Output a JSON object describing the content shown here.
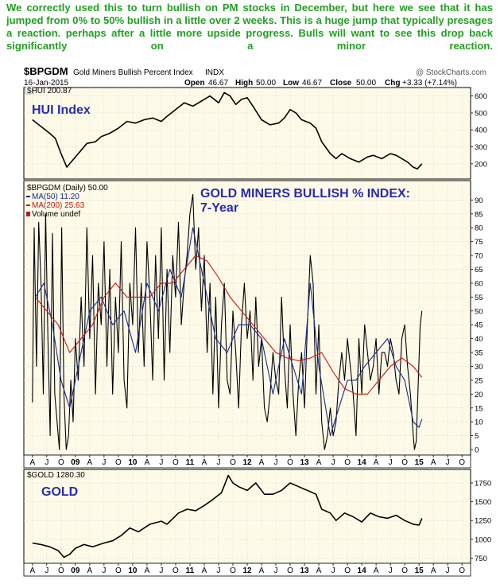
{
  "commentary": "We correctly used this to turn bullish on PM stocks in December, but here we see that it has jumped from 0% to 50% bullish in a little over 2 weeks. This is a huge jump that typically presages a reaction. perhaps after a little more upside progress. Bulls will want to see this drop back significantly on a minor reaction.",
  "header": {
    "symbol": "$BPGDM",
    "name": "Gold Miners Bullish Percent Index",
    "exchange": "INDX",
    "date": "16-Jan-2015",
    "source": "@ StockCharts.com",
    "open_label": "Open",
    "open": "46.67",
    "high_label": "High",
    "high": "50.00",
    "low_label": "Low",
    "low": "46.67",
    "close_label": "Close",
    "close": "50.00",
    "chg_label": "Chg",
    "chg": "+3.33 (+7.14%)"
  },
  "colors": {
    "panel_bg": "#fdfbe8",
    "annotation": "#2a2ab0",
    "bpi_line": "#000000",
    "ma50": "#1b2a8c",
    "ma200": "#cc1111",
    "price_line": "#000000",
    "volume": "#aa2222"
  },
  "chart_data": [
    {
      "id": "hui",
      "type": "line",
      "title": "HUI Index",
      "legend": [
        {
          "label": "$HUI 200.87"
        }
      ],
      "ylim": [
        110,
        650
      ],
      "y_ticks": [
        "600",
        "500",
        "400",
        "300",
        "200"
      ],
      "y_tick_values": [
        600,
        500,
        400,
        300,
        200
      ],
      "series": [
        {
          "name": "$HUI",
          "x": [
            2008.25,
            2008.4,
            2008.55,
            2008.65,
            2008.75,
            2008.85,
            2008.95,
            2009.1,
            2009.2,
            2009.35,
            2009.45,
            2009.6,
            2009.75,
            2009.9,
            2010.05,
            2010.2,
            2010.35,
            2010.5,
            2010.6,
            2010.75,
            2010.9,
            2011.05,
            2011.2,
            2011.35,
            2011.5,
            2011.6,
            2011.7,
            2011.8,
            2011.9,
            2012.0,
            2012.1,
            2012.25,
            2012.4,
            2012.55,
            2012.65,
            2012.75,
            2012.85,
            2012.95,
            2013.1,
            2013.2,
            2013.3,
            2013.45,
            2013.55,
            2013.65,
            2013.8,
            2013.95,
            2014.1,
            2014.2,
            2014.35,
            2014.5,
            2014.6,
            2014.7,
            2014.8,
            2014.9,
            2014.97,
            2015.05
          ],
          "values": [
            460,
            420,
            380,
            350,
            260,
            180,
            220,
            280,
            320,
            330,
            360,
            380,
            410,
            450,
            440,
            460,
            470,
            450,
            480,
            520,
            560,
            540,
            570,
            600,
            560,
            620,
            600,
            550,
            580,
            590,
            540,
            460,
            430,
            440,
            470,
            520,
            500,
            460,
            440,
            410,
            330,
            260,
            230,
            260,
            230,
            210,
            240,
            250,
            230,
            260,
            250,
            230,
            210,
            180,
            170,
            200
          ]
        }
      ]
    },
    {
      "id": "bpgdm",
      "type": "line",
      "title": "GOLD MINERS BULLISH % INDEX:",
      "subtitle": "7-Year",
      "legend": [
        {
          "label": "$BPGDM (Daily) 50.00"
        },
        {
          "label": "MA(50) 11.20"
        },
        {
          "label": "MA(200) 25.63"
        },
        {
          "label": "Volume undef"
        }
      ],
      "ylim": [
        -2,
        97
      ],
      "y_ticks": [
        "90",
        "85",
        "80",
        "75",
        "70",
        "65",
        "60",
        "55",
        "50",
        "45",
        "40",
        "35",
        "30",
        "25",
        "20",
        "15",
        "10",
        "5",
        "0"
      ],
      "y_tick_values": [
        90,
        85,
        80,
        75,
        70,
        65,
        60,
        55,
        50,
        45,
        40,
        35,
        30,
        25,
        20,
        15,
        10,
        5,
        0
      ],
      "series": [
        {
          "name": "$BPGDM",
          "x": [
            2008.25,
            2008.28,
            2008.32,
            2008.36,
            2008.4,
            2008.44,
            2008.48,
            2008.52,
            2008.56,
            2008.6,
            2008.64,
            2008.68,
            2008.72,
            2008.76,
            2008.8,
            2008.84,
            2008.88,
            2008.92,
            2008.96,
            2009.0,
            2009.05,
            2009.1,
            2009.15,
            2009.2,
            2009.25,
            2009.3,
            2009.35,
            2009.4,
            2009.45,
            2009.5,
            2009.55,
            2009.6,
            2009.65,
            2009.7,
            2009.75,
            2009.8,
            2009.85,
            2009.9,
            2009.95,
            2010.0,
            2010.05,
            2010.1,
            2010.15,
            2010.2,
            2010.25,
            2010.3,
            2010.35,
            2010.4,
            2010.45,
            2010.5,
            2010.55,
            2010.6,
            2010.65,
            2010.7,
            2010.75,
            2010.8,
            2010.85,
            2010.9,
            2010.95,
            2011.0,
            2011.05,
            2011.1,
            2011.15,
            2011.2,
            2011.25,
            2011.3,
            2011.35,
            2011.4,
            2011.45,
            2011.5,
            2011.55,
            2011.6,
            2011.65,
            2011.7,
            2011.75,
            2011.8,
            2011.85,
            2011.9,
            2011.95,
            2012.0,
            2012.05,
            2012.1,
            2012.15,
            2012.2,
            2012.25,
            2012.3,
            2012.35,
            2012.4,
            2012.45,
            2012.5,
            2012.55,
            2012.6,
            2012.65,
            2012.7,
            2012.75,
            2012.8,
            2012.85,
            2012.9,
            2012.95,
            2013.0,
            2013.05,
            2013.1,
            2013.15,
            2013.2,
            2013.25,
            2013.3,
            2013.35,
            2013.4,
            2013.45,
            2013.5,
            2013.55,
            2013.6,
            2013.65,
            2013.7,
            2013.75,
            2013.8,
            2013.85,
            2013.9,
            2013.95,
            2014.0,
            2014.05,
            2014.1,
            2014.15,
            2014.2,
            2014.25,
            2014.3,
            2014.35,
            2014.4,
            2014.45,
            2014.5,
            2014.55,
            2014.6,
            2014.65,
            2014.7,
            2014.75,
            2014.8,
            2014.85,
            2014.9,
            2014.92,
            2014.95,
            2014.98,
            2015.02,
            2015.05
          ],
          "values": [
            17,
            80,
            30,
            82,
            60,
            20,
            85,
            40,
            5,
            78,
            20,
            10,
            0,
            80,
            20,
            0,
            5,
            25,
            10,
            40,
            25,
            55,
            30,
            80,
            40,
            70,
            20,
            60,
            45,
            75,
            30,
            65,
            20,
            55,
            35,
            75,
            25,
            15,
            60,
            45,
            80,
            35,
            60,
            30,
            75,
            55,
            25,
            70,
            40,
            80,
            25,
            65,
            35,
            70,
            55,
            82,
            45,
            60,
            70,
            85,
            92,
            65,
            80,
            50,
            70,
            35,
            60,
            20,
            55,
            15,
            45,
            60,
            25,
            20,
            50,
            35,
            15,
            45,
            60,
            40,
            50,
            25,
            55,
            30,
            40,
            15,
            10,
            20,
            35,
            25,
            20,
            55,
            30,
            15,
            45,
            20,
            5,
            25,
            35,
            15,
            45,
            70,
            60,
            20,
            45,
            10,
            0,
            5,
            15,
            5,
            10,
            25,
            35,
            25,
            40,
            30,
            20,
            5,
            40,
            20,
            45,
            35,
            25,
            30,
            40,
            20,
            35,
            35,
            30,
            40,
            35,
            25,
            20,
            40,
            45,
            30,
            20,
            5,
            0,
            3,
            20,
            45,
            50
          ]
        },
        {
          "name": "MA(50)",
          "x": [
            2008.3,
            2008.45,
            2008.6,
            2008.75,
            2008.9,
            2009.05,
            2009.25,
            2009.45,
            2009.65,
            2009.85,
            2010.05,
            2010.25,
            2010.45,
            2010.65,
            2010.85,
            2011.05,
            2011.25,
            2011.45,
            2011.65,
            2011.85,
            2012.05,
            2012.25,
            2012.45,
            2012.65,
            2012.8,
            2012.95,
            2013.1,
            2013.25,
            2013.45,
            2013.6,
            2013.75,
            2013.9,
            2014.05,
            2014.25,
            2014.45,
            2014.6,
            2014.75,
            2014.9,
            2015.0,
            2015.05
          ],
          "values": [
            55,
            60,
            45,
            25,
            15,
            30,
            50,
            55,
            45,
            50,
            35,
            60,
            50,
            65,
            55,
            80,
            60,
            40,
            35,
            45,
            45,
            40,
            20,
            40,
            30,
            20,
            60,
            30,
            5,
            15,
            25,
            25,
            30,
            35,
            40,
            30,
            25,
            10,
            8,
            11
          ]
        },
        {
          "name": "MA(200)",
          "x": [
            2008.3,
            2008.5,
            2008.7,
            2008.9,
            2009.1,
            2009.3,
            2009.5,
            2009.7,
            2009.9,
            2010.1,
            2010.3,
            2010.5,
            2010.7,
            2010.9,
            2011.1,
            2011.3,
            2011.5,
            2011.7,
            2011.9,
            2012.1,
            2012.3,
            2012.5,
            2012.7,
            2012.9,
            2013.1,
            2013.3,
            2013.5,
            2013.7,
            2013.9,
            2014.1,
            2014.3,
            2014.5,
            2014.7,
            2014.9,
            2015.05
          ],
          "values": [
            55,
            50,
            45,
            35,
            40,
            45,
            55,
            60,
            55,
            55,
            55,
            60,
            60,
            65,
            70,
            68,
            62,
            55,
            50,
            45,
            40,
            35,
            33,
            32,
            33,
            35,
            28,
            22,
            20,
            20,
            25,
            30,
            33,
            30,
            26
          ]
        }
      ]
    },
    {
      "id": "gold",
      "type": "line",
      "title": "GOLD",
      "legend": [
        {
          "label": "$GOLD 1280.30"
        }
      ],
      "ylim": [
        680,
        1930
      ],
      "y_ticks": [
        "1750",
        "1500",
        "1250",
        "1000",
        "750"
      ],
      "y_tick_values": [
        1750,
        1500,
        1250,
        1000,
        750
      ],
      "series": [
        {
          "name": "$GOLD",
          "x": [
            2008.25,
            2008.4,
            2008.55,
            2008.7,
            2008.8,
            2008.9,
            2009.0,
            2009.15,
            2009.3,
            2009.5,
            2009.65,
            2009.8,
            2009.95,
            2010.1,
            2010.3,
            2010.5,
            2010.6,
            2010.8,
            2010.95,
            2011.1,
            2011.25,
            2011.4,
            2011.55,
            2011.67,
            2011.75,
            2011.85,
            2012.0,
            2012.15,
            2012.3,
            2012.45,
            2012.6,
            2012.75,
            2012.9,
            2013.05,
            2013.2,
            2013.3,
            2013.45,
            2013.55,
            2013.7,
            2013.85,
            2014.0,
            2014.15,
            2014.3,
            2014.45,
            2014.6,
            2014.75,
            2014.9,
            2015.0,
            2015.05
          ],
          "values": [
            950,
            930,
            900,
            850,
            760,
            800,
            880,
            930,
            900,
            950,
            980,
            1050,
            1150,
            1100,
            1200,
            1240,
            1200,
            1350,
            1400,
            1380,
            1450,
            1530,
            1620,
            1850,
            1750,
            1700,
            1650,
            1750,
            1600,
            1600,
            1650,
            1750,
            1700,
            1650,
            1600,
            1400,
            1350,
            1250,
            1350,
            1300,
            1230,
            1350,
            1300,
            1280,
            1320,
            1250,
            1200,
            1190,
            1280
          ]
        }
      ]
    }
  ],
  "x_axis": {
    "labels": [
      "A",
      "J",
      "O",
      "09",
      "A",
      "J",
      "O",
      "10",
      "A",
      "J",
      "O",
      "11",
      "A",
      "J",
      "O",
      "12",
      "A",
      "J",
      "O",
      "13",
      "A",
      "J",
      "O",
      "14",
      "A",
      "J",
      "O",
      "15",
      "A",
      "J",
      "O"
    ],
    "positions": [
      2008.25,
      2008.5,
      2008.75,
      2009.0,
      2009.25,
      2009.5,
      2009.75,
      2010.0,
      2010.25,
      2010.5,
      2010.75,
      2011.0,
      2011.25,
      2011.5,
      2011.75,
      2012.0,
      2012.25,
      2012.5,
      2012.75,
      2013.0,
      2013.25,
      2013.5,
      2013.75,
      2014.0,
      2014.25,
      2014.5,
      2014.75,
      2015.0,
      2015.25,
      2015.5,
      2015.75
    ],
    "range": [
      2008.1,
      2015.9
    ]
  }
}
